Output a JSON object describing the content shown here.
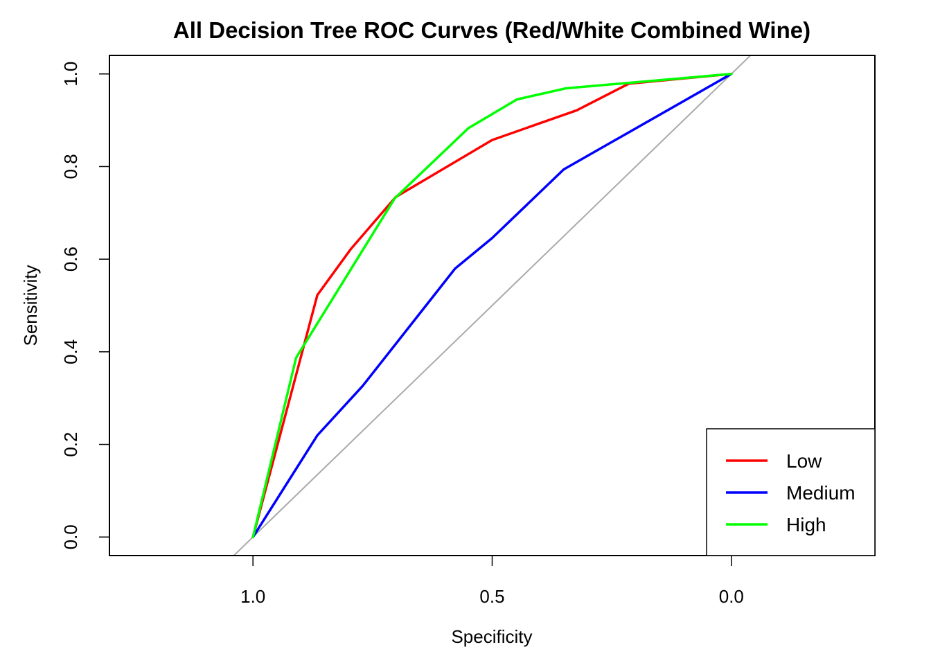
{
  "chart_data": {
    "type": "line",
    "title": "All Decision Tree ROC Curves (Red/White Combined Wine)",
    "xlabel": "Specificity",
    "ylabel": "Sensitivity",
    "x_reversed": true,
    "xlim": [
      1.3,
      -0.3
    ],
    "ylim": [
      -0.04,
      1.04
    ],
    "x_ticks": [
      1.0,
      0.5,
      0.0
    ],
    "x_tick_labels": [
      "1.0",
      "0.5",
      "0.0"
    ],
    "y_ticks": [
      0.0,
      0.2,
      0.4,
      0.6,
      0.8,
      1.0
    ],
    "y_tick_labels": [
      "0.0",
      "0.2",
      "0.4",
      "0.6",
      "0.8",
      "1.0"
    ],
    "grid": false,
    "legend_position": "bottom-right",
    "reference_line": {
      "type": "diagonal",
      "color": "#aaaaaa"
    },
    "series": [
      {
        "name": "Low",
        "color": "#ff0000",
        "points": [
          [
            1.0,
            0.0
          ],
          [
            0.8655,
            0.5225
          ],
          [
            0.7955,
            0.6217
          ],
          [
            0.7015,
            0.7343
          ],
          [
            0.5,
            0.8574
          ],
          [
            0.3233,
            0.9214
          ],
          [
            0.2143,
            0.979
          ],
          [
            0.0,
            1.0
          ]
        ]
      },
      {
        "name": "Medium",
        "color": "#0000ff",
        "points": [
          [
            1.0,
            0.0
          ],
          [
            0.8654,
            0.2195
          ],
          [
            0.7706,
            0.3263
          ],
          [
            0.5774,
            0.5797
          ],
          [
            0.5,
            0.6457
          ],
          [
            0.3503,
            0.7939
          ],
          [
            0.0,
            1.0
          ]
        ]
      },
      {
        "name": "High",
        "color": "#00ff00",
        "points": [
          [
            1.0,
            0.0
          ],
          [
            0.9098,
            0.3872
          ],
          [
            0.7038,
            0.7313
          ],
          [
            0.5496,
            0.8829
          ],
          [
            0.4481,
            0.945
          ],
          [
            0.3458,
            0.9689
          ],
          [
            0.2143,
            0.9808
          ],
          [
            0.0,
            1.0
          ]
        ]
      }
    ]
  }
}
